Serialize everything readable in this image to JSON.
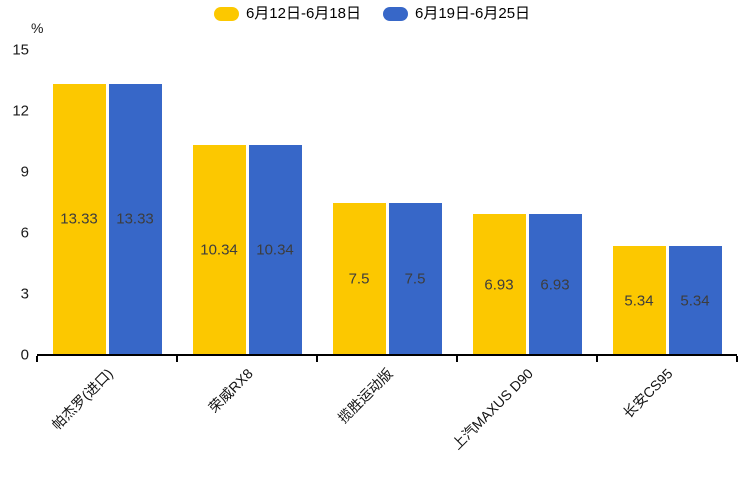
{
  "legend": {
    "items": [
      {
        "label": "6月12日-6月18日",
        "color": "#fcc800"
      },
      {
        "label": "6月19日-6月25日",
        "color": "#3767c8"
      }
    ]
  },
  "chart_data": {
    "type": "bar",
    "title": "",
    "unit": "%",
    "categories": [
      "帕杰罗(进口)",
      "荣威RX8",
      "揽胜运动版",
      "上汽MAXUS D90",
      "长安CS95"
    ],
    "series": [
      {
        "name": "6月12日-6月18日",
        "color": "#fcc800",
        "values": [
          13.33,
          10.34,
          7.5,
          6.93,
          5.34
        ]
      },
      {
        "name": "6月19日-6月25日",
        "color": "#3767c8",
        "values": [
          13.33,
          10.34,
          7.5,
          6.93,
          5.34
        ]
      }
    ],
    "value_labels_shown": true,
    "ylim": [
      0,
      15
    ],
    "yticks": [
      0,
      3,
      6,
      9,
      12,
      15
    ],
    "grid": "off",
    "legend_position": "top",
    "xlabel": "",
    "ylabel": "%",
    "axis_color": "#000000",
    "tick_label_color": "#1a1a1a",
    "value_label_color": "#3d3d3d"
  }
}
